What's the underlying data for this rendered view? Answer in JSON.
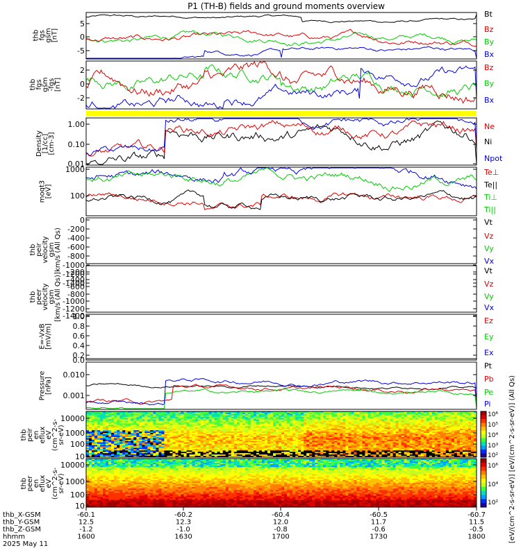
{
  "title": "P1 (TH-B) fields and ground moments overview",
  "colors": {
    "black": "#000000",
    "red": "#dd0000",
    "green": "#00cc00",
    "blue": "#0000dd",
    "yellow": "#ffff00"
  },
  "chart_data": [
    {
      "id": "fgs-gsm",
      "type": "line",
      "ylabel_lines": [
        "thb",
        "fgs",
        "gsm",
        "[nT]"
      ],
      "yticks": [
        "5",
        "0",
        "-5"
      ],
      "legend": [
        {
          "name": "Bt",
          "color": "#000000"
        },
        {
          "name": "Bz",
          "color": "#dd0000"
        },
        {
          "name": "By",
          "color": "#00cc00"
        },
        {
          "name": "Bx",
          "color": "#0000dd"
        }
      ]
    },
    {
      "id": "fgs-gse",
      "type": "line",
      "ylabel_lines": [
        "thb",
        "fgs",
        "gsm",
        "-fgs",
        "[nT]"
      ],
      "yticks": [
        "2",
        "0",
        "-2"
      ],
      "legend": [
        {
          "name": "Bz",
          "color": "#dd0000"
        },
        {
          "name": "By",
          "color": "#00cc00"
        },
        {
          "name": "Bx",
          "color": "#0000dd"
        }
      ]
    },
    {
      "id": "density",
      "type": "line",
      "ylabel_lines": [
        "Density",
        "[1/cc]",
        "[cm-3]"
      ],
      "yticks": [
        "1.00",
        "0.10",
        "0.01"
      ],
      "legend": [
        {
          "name": "Ne",
          "color": "#dd0000"
        },
        {
          "name": "Ni",
          "color": "#000000"
        },
        {
          "name": "Npot",
          "color": "#0000dd"
        }
      ]
    },
    {
      "id": "temperature",
      "type": "line",
      "ylabel_lines": [
        "moqt3",
        "[eV]"
      ],
      "yticks": [
        "1000",
        "100"
      ],
      "legend": [
        {
          "name": "Te⊥",
          "color": "#dd0000"
        },
        {
          "name": "Te||",
          "color": "#000000"
        },
        {
          "name": "Ti⊥",
          "color": "#00cc00"
        },
        {
          "name": "Ti||",
          "color": "#00cc00"
        }
      ]
    },
    {
      "id": "peir-velocity",
      "type": "line",
      "ylabel_lines": [
        "thb",
        "peir",
        "velocity",
        "gsm",
        "km/s (All Qs)"
      ],
      "yticks": [
        "0",
        "-200",
        "-400",
        "-600",
        "-800",
        "-1000",
        "-1200",
        "-1400"
      ],
      "legend": [
        {
          "name": "Vt",
          "color": "#000000"
        },
        {
          "name": "Vz",
          "color": "#dd0000"
        },
        {
          "name": "Vy",
          "color": "#00cc00"
        },
        {
          "name": "Vx",
          "color": "#0000dd"
        }
      ]
    },
    {
      "id": "peer-velocity",
      "type": "line",
      "ylabel_lines": [
        "thb",
        "peer",
        "velocity",
        "gsm",
        "[km/s (All Qs)]"
      ],
      "yticks": [
        "-200",
        "-400",
        "-600",
        "-800",
        "-1000",
        "-1200",
        "-1400"
      ],
      "legend": [
        {
          "name": "Vt",
          "color": "#000000"
        },
        {
          "name": "Vz",
          "color": "#dd0000"
        },
        {
          "name": "Vy",
          "color": "#00cc00"
        },
        {
          "name": "Vx",
          "color": "#0000dd"
        }
      ]
    },
    {
      "id": "efield",
      "type": "line",
      "ylabel_lines": [
        "E=-VxB",
        "[mV/m]"
      ],
      "yticks": [
        "1.0",
        "0.8",
        "0.6",
        "0.4",
        "0.2",
        "0.0"
      ],
      "legend": [
        {
          "name": "Ez",
          "color": "#dd0000"
        },
        {
          "name": "Ey",
          "color": "#00cc00"
        },
        {
          "name": "Ex",
          "color": "#0000dd"
        }
      ]
    },
    {
      "id": "pressure",
      "type": "line",
      "ylabel_lines": [
        "Pressure",
        "[nPa]"
      ],
      "yticks": [
        "0.010",
        "0.001"
      ],
      "legend": [
        {
          "name": "Pt",
          "color": "#000000"
        },
        {
          "name": "Pb",
          "color": "#dd0000"
        },
        {
          "name": "Pe",
          "color": "#00cc00"
        },
        {
          "name": "Pi",
          "color": "#0000dd"
        }
      ]
    },
    {
      "id": "peir-spectrogram",
      "type": "heatmap",
      "ylabel_lines": [
        "thb",
        "peir",
        "en",
        "eflux",
        "eV",
        "(cm^2-s-",
        "sr-eV)"
      ],
      "yticks": [
        "10000",
        "1000",
        "100",
        "10"
      ]
    },
    {
      "id": "peer-spectrogram",
      "type": "heatmap",
      "ylabel_lines": [
        "thb",
        "peer",
        "en",
        "eflux",
        "eV",
        "(cm^2-s-",
        "sr-eV)"
      ],
      "yticks": [
        "10000",
        "1000",
        "100",
        "10"
      ]
    }
  ],
  "colorbar": {
    "ticks_upper": [
      "10⁶",
      "10⁵",
      "10⁴",
      "10³",
      "10²"
    ],
    "ticks_lower": [
      "10⁶",
      "10⁴",
      "10²"
    ],
    "label": "[eV/(cm^2-s-sr-eV)] [eV/(cm^2-s-sr-eV)] (All Qs)"
  },
  "xaxis": {
    "row_labels": [
      "thb_X-GSM",
      "thb_Y-GSM",
      "thb_Z-GSM",
      "hhmm",
      "2025 May 11"
    ],
    "columns": [
      {
        "values": [
          "-60.1",
          "12.5",
          "-1.2",
          "1600"
        ]
      },
      {
        "values": [
          "-60.2",
          "12.3",
          "-1.0",
          "1630"
        ]
      },
      {
        "values": [
          "-60.4",
          "12.0",
          "-0.8",
          "1700"
        ]
      },
      {
        "values": [
          "-60.5",
          "11.7",
          "-0.6",
          "1730"
        ]
      },
      {
        "values": [
          "-60.7",
          "11.5",
          "-0.5",
          "1800"
        ]
      }
    ]
  }
}
